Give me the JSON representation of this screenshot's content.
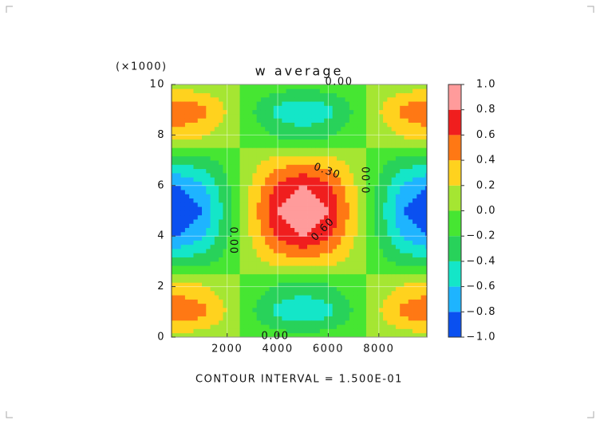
{
  "chart_data": {
    "type": "contour",
    "title": "w average",
    "y_multiplier": "(×1000)",
    "footer": "CONTOUR INTERVAL = 1.500E-01",
    "x": [
      0,
      1000,
      2000,
      3000,
      4000,
      5000,
      6000,
      7000,
      8000,
      9000,
      10000
    ],
    "y": [
      0,
      1000,
      2000,
      3000,
      4000,
      5000,
      6000,
      7000,
      8000,
      9000,
      10000
    ],
    "z": [
      [
        0.1,
        0.08,
        0.03,
        -0.03,
        -0.08,
        -0.1,
        -0.08,
        -0.03,
        0.03,
        0.08,
        0.1
      ],
      [
        0.6,
        0.49,
        0.19,
        -0.19,
        -0.49,
        -0.6,
        -0.49,
        -0.19,
        0.19,
        0.49,
        0.6
      ],
      [
        0.3,
        0.24,
        0.09,
        -0.09,
        -0.24,
        -0.3,
        -0.24,
        -0.09,
        0.09,
        0.24,
        0.3
      ],
      [
        -0.35,
        -0.28,
        -0.11,
        0.11,
        0.28,
        0.35,
        0.28,
        0.11,
        -0.11,
        -0.28,
        -0.35
      ],
      [
        -0.8,
        -0.65,
        -0.25,
        0.25,
        0.65,
        0.8,
        0.65,
        0.25,
        -0.25,
        -0.65,
        -0.8
      ],
      [
        -1,
        -0.81,
        -0.31,
        0.31,
        0.81,
        1,
        0.81,
        0.31,
        -0.31,
        -0.81,
        -1
      ],
      [
        -0.8,
        -0.65,
        -0.25,
        0.25,
        0.65,
        0.8,
        0.65,
        0.25,
        -0.25,
        -0.65,
        -0.8
      ],
      [
        -0.35,
        -0.28,
        -0.11,
        0.11,
        0.28,
        0.35,
        0.28,
        0.11,
        -0.11,
        -0.28,
        -0.35
      ],
      [
        0.3,
        0.24,
        0.09,
        -0.09,
        -0.24,
        -0.3,
        -0.24,
        -0.09,
        0.09,
        0.24,
        0.3
      ],
      [
        0.6,
        0.49,
        0.19,
        -0.19,
        -0.49,
        -0.6,
        -0.49,
        -0.19,
        0.19,
        0.49,
        0.6
      ],
      [
        0.1,
        0.08,
        0.03,
        -0.03,
        -0.08,
        -0.1,
        -0.08,
        -0.03,
        0.03,
        0.08,
        0.1
      ]
    ],
    "xlim": [
      -200,
      9900
    ],
    "ylim": [
      0,
      10000
    ],
    "xticks": [
      2000,
      4000,
      6000,
      8000
    ],
    "yticks": [
      {
        "value": 0,
        "label": "0"
      },
      {
        "value": 2000,
        "label": "2"
      },
      {
        "value": 4000,
        "label": "4"
      },
      {
        "value": 6000,
        "label": "6"
      },
      {
        "value": 8000,
        "label": "8"
      },
      {
        "value": 10000,
        "label": "10"
      }
    ],
    "levels": [
      {
        "value": -1,
        "label": "−1.0"
      },
      {
        "value": -0.8,
        "label": "−0.8"
      },
      {
        "value": -0.6,
        "label": "−0.6"
      },
      {
        "value": -0.4,
        "label": "−0.4"
      },
      {
        "value": -0.2,
        "label": "−0.2"
      },
      {
        "value": 0,
        "label": "0.0"
      },
      {
        "value": 0.2,
        "label": "0.2"
      },
      {
        "value": 0.4,
        "label": "0.4"
      },
      {
        "value": 0.6,
        "label": "0.6"
      },
      {
        "value": 0.8,
        "label": "0.8"
      },
      {
        "value": 1,
        "label": "1.0"
      }
    ],
    "colors": [
      "#0a50f0",
      "#1eb4ff",
      "#14e6c8",
      "#28d25a",
      "#46e632",
      "#a5e632",
      "#ffd21e",
      "#ff7814",
      "#f01e1e",
      "#ff9b9b"
    ],
    "grid": true,
    "annotations": [
      "0.00",
      "0.30",
      "0.60",
      "0.00",
      "0.00",
      "0.00"
    ]
  }
}
